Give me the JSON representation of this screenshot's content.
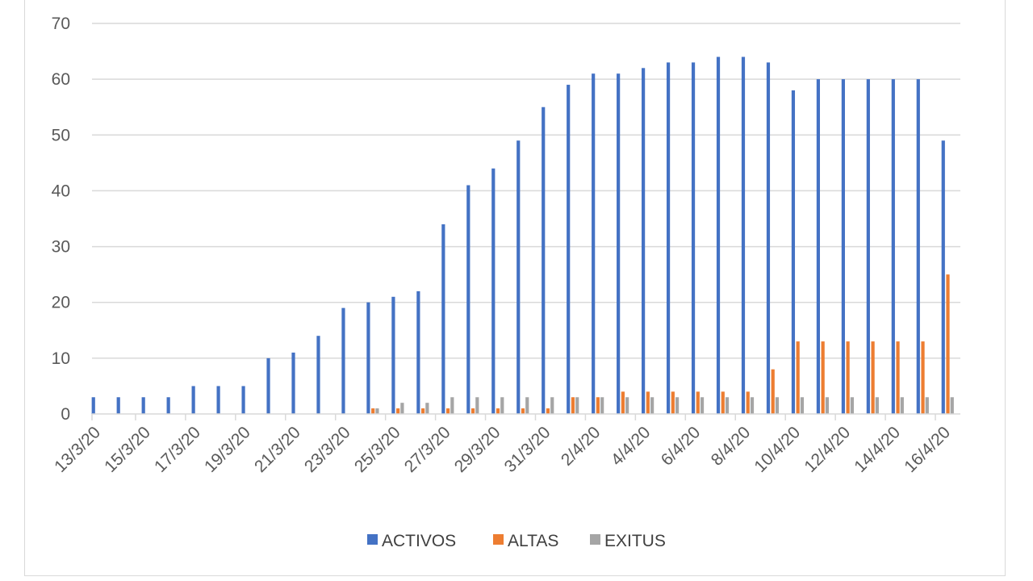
{
  "chart_data": {
    "type": "bar",
    "title": "",
    "xlabel": "",
    "ylabel": "",
    "ylim": [
      0,
      70
    ],
    "yticks": [
      0,
      10,
      20,
      30,
      40,
      50,
      60,
      70
    ],
    "grid": true,
    "legend_position": "bottom",
    "categories": [
      "13/3/20",
      "14/3/20",
      "15/3/20",
      "16/3/20",
      "17/3/20",
      "18/3/20",
      "19/3/20",
      "20/3/20",
      "21/3/20",
      "22/3/20",
      "23/3/20",
      "24/3/20",
      "25/3/20",
      "26/3/20",
      "27/3/20",
      "28/3/20",
      "29/3/20",
      "30/3/20",
      "31/3/20",
      "1/4/20",
      "2/4/20",
      "3/4/20",
      "4/4/20",
      "5/4/20",
      "6/4/20",
      "7/4/20",
      "8/4/20",
      "9/4/20",
      "10/4/20",
      "11/4/20",
      "12/4/20",
      "13/4/20",
      "14/4/20",
      "15/4/20",
      "16/4/20"
    ],
    "tick_labels": [
      "13/3/20",
      "15/3/20",
      "17/3/20",
      "19/3/20",
      "21/3/20",
      "23/3/20",
      "25/3/20",
      "27/3/20",
      "29/3/20",
      "31/3/20",
      "2/4/20",
      "4/4/20",
      "6/4/20",
      "8/4/20",
      "10/4/20",
      "12/4/20",
      "14/4/20",
      "16/4/20"
    ],
    "series": [
      {
        "name": "ACTIVOS",
        "color": "#4472c4",
        "values": [
          3,
          3,
          3,
          3,
          5,
          5,
          5,
          10,
          11,
          14,
          19,
          20,
          21,
          22,
          34,
          41,
          44,
          49,
          55,
          59,
          61,
          61,
          62,
          63,
          63,
          64,
          64,
          63,
          58,
          60,
          60,
          60,
          60,
          60,
          49
        ]
      },
      {
        "name": "ALTAS",
        "color": "#ed7d31",
        "values": [
          0,
          0,
          0,
          0,
          0,
          0,
          0,
          0,
          0,
          0,
          0,
          1,
          1,
          1,
          1,
          1,
          1,
          1,
          1,
          3,
          3,
          4,
          4,
          4,
          4,
          4,
          4,
          8,
          13,
          13,
          13,
          13,
          13,
          13,
          25
        ]
      },
      {
        "name": "EXITUS",
        "color": "#a5a5a5",
        "values": [
          0,
          0,
          0,
          0,
          0,
          0,
          0,
          0,
          0,
          0,
          0,
          1,
          2,
          2,
          3,
          3,
          3,
          3,
          3,
          3,
          3,
          3,
          3,
          3,
          3,
          3,
          3,
          3,
          3,
          3,
          3,
          3,
          3,
          3,
          3
        ]
      }
    ]
  }
}
